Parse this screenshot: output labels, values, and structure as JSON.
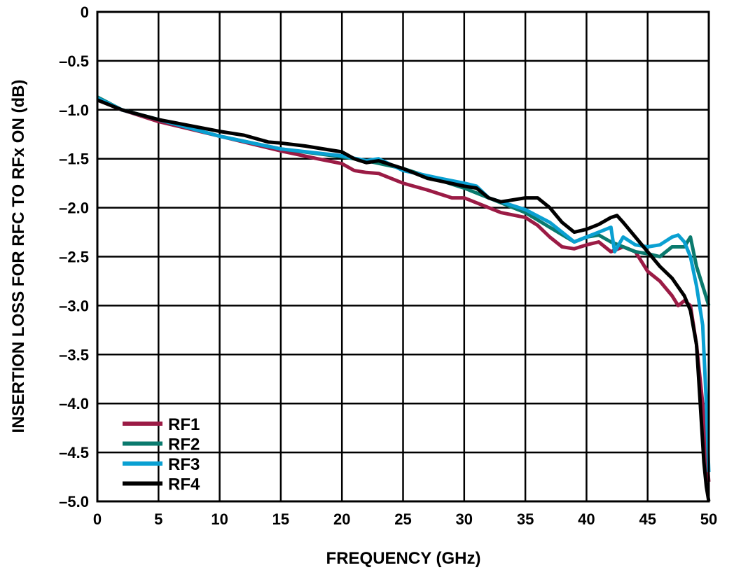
{
  "chart_data": {
    "type": "line",
    "title": "",
    "xlabel": "FREQUENCY (GHz)",
    "ylabel": "INSERTION LOSS FOR RFC TO RFx ON (dB)",
    "xlim": [
      0,
      50
    ],
    "ylim": [
      -5.0,
      0
    ],
    "xticks": [
      "0",
      "5",
      "10",
      "15",
      "20",
      "25",
      "30",
      "35",
      "40",
      "45",
      "50"
    ],
    "yticks": [
      "0",
      "–0.5",
      "–1.0",
      "–1.5",
      "–2.0",
      "–2.5",
      "–3.0",
      "–3.5",
      "–4.0",
      "–4.5",
      "–5.0"
    ],
    "grid": true,
    "legend_position": "bottom-left",
    "series": [
      {
        "name": "RF1",
        "color": "#9b1b45",
        "x": [
          0,
          2,
          5,
          10,
          15,
          18,
          20,
          21,
          22,
          23,
          25,
          27,
          29,
          30,
          31,
          33,
          35,
          36,
          37,
          38,
          39,
          40,
          41,
          42,
          43,
          44,
          45,
          46,
          47,
          47.5,
          48,
          48.5,
          49,
          49.5,
          49.8,
          50
        ],
        "y": [
          -0.9,
          -1.0,
          -1.12,
          -1.27,
          -1.42,
          -1.5,
          -1.55,
          -1.62,
          -1.64,
          -1.65,
          -1.75,
          -1.82,
          -1.9,
          -1.9,
          -1.95,
          -2.05,
          -2.1,
          -2.18,
          -2.3,
          -2.4,
          -2.42,
          -2.38,
          -2.35,
          -2.45,
          -2.4,
          -2.45,
          -2.65,
          -2.75,
          -2.9,
          -3.0,
          -2.95,
          -3.0,
          -3.4,
          -4.0,
          -4.5,
          -4.8
        ]
      },
      {
        "name": "RF2",
        "color": "#0a7a6e",
        "x": [
          0,
          2,
          5,
          10,
          15,
          20,
          22,
          25,
          30,
          32,
          35,
          37,
          39,
          40,
          41,
          42,
          44,
          45,
          46,
          47,
          48,
          48.5,
          49,
          49.5,
          50
        ],
        "y": [
          -0.87,
          -1.0,
          -1.1,
          -1.27,
          -1.4,
          -1.48,
          -1.52,
          -1.6,
          -1.8,
          -1.9,
          -2.05,
          -2.2,
          -2.35,
          -2.3,
          -2.28,
          -2.35,
          -2.45,
          -2.47,
          -2.5,
          -2.4,
          -2.4,
          -2.3,
          -2.6,
          -2.8,
          -3.0
        ]
      },
      {
        "name": "RF3",
        "color": "#0aa0d2",
        "x": [
          0,
          2,
          5,
          10,
          15,
          20,
          22,
          23,
          25,
          28,
          30,
          31,
          32,
          35,
          37,
          39,
          40,
          41,
          42,
          42.3,
          43,
          44,
          45,
          46,
          47,
          47.5,
          48,
          48.5,
          49,
          49.5,
          49.8,
          50
        ],
        "y": [
          -0.88,
          -1.0,
          -1.1,
          -1.27,
          -1.4,
          -1.47,
          -1.52,
          -1.5,
          -1.62,
          -1.7,
          -1.75,
          -1.78,
          -1.9,
          -2.02,
          -2.15,
          -2.35,
          -2.3,
          -2.25,
          -2.2,
          -2.45,
          -2.3,
          -2.38,
          -2.4,
          -2.38,
          -2.3,
          -2.28,
          -2.35,
          -2.5,
          -2.8,
          -3.2,
          -4.0,
          -4.7
        ]
      },
      {
        "name": "RF4",
        "color": "#000000",
        "x": [
          0,
          2,
          5,
          10,
          12,
          14,
          15,
          17,
          19,
          20,
          21,
          22,
          23,
          25,
          27,
          30,
          31,
          32,
          33,
          35,
          36,
          37,
          38,
          39,
          40,
          41,
          42,
          42.5,
          43,
          44,
          45,
          46,
          47,
          48,
          48.5,
          49,
          49.3,
          49.6,
          49.8,
          50
        ],
        "y": [
          -0.9,
          -1.0,
          -1.1,
          -1.22,
          -1.26,
          -1.33,
          -1.34,
          -1.37,
          -1.41,
          -1.43,
          -1.5,
          -1.54,
          -1.52,
          -1.6,
          -1.7,
          -1.78,
          -1.8,
          -1.9,
          -1.94,
          -1.9,
          -1.9,
          -2.0,
          -2.15,
          -2.25,
          -2.22,
          -2.17,
          -2.1,
          -2.08,
          -2.15,
          -2.3,
          -2.45,
          -2.6,
          -2.72,
          -2.9,
          -3.05,
          -3.4,
          -4.0,
          -4.6,
          -4.85,
          -5.0
        ]
      }
    ]
  }
}
